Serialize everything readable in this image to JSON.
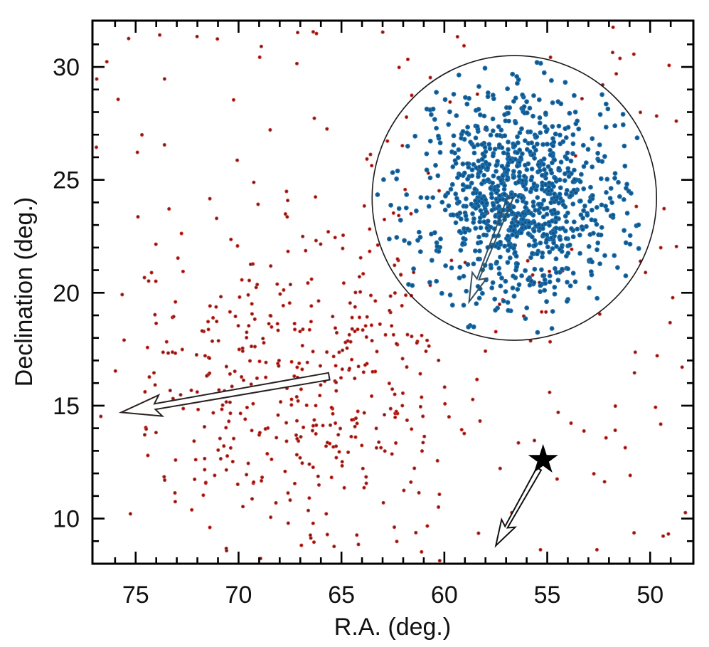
{
  "figure": {
    "background": "#ffffff"
  },
  "chart_data": {
    "type": "scatter",
    "title": "",
    "xlabel": "R.A. (deg.)",
    "ylabel": "Declination (deg.)",
    "x_axis": {
      "label": "R.A. (deg.)",
      "range": [
        77.1,
        47.9
      ],
      "reversed": true,
      "major_ticks": [
        75,
        70,
        65,
        60,
        55,
        50
      ],
      "minor_tick_step": 1
    },
    "y_axis": {
      "label": "Declination (deg.)",
      "range": [
        8.0,
        32.05
      ],
      "major_ticks": [
        10,
        15,
        20,
        25,
        30
      ],
      "minor_tick_step": 1
    },
    "grid": false,
    "legend": "none",
    "series": [
      {
        "name": "field-moving-group-stars",
        "marker": "dot",
        "marker_radius_px": 2.6,
        "color": "#cf302c",
        "core_color": "#330d0b",
        "components": [
          {
            "type": "gaussian",
            "count": 360,
            "center": {
              "ra": 66.9,
              "dec": 15.8
            },
            "sigma": {
              "ra": 4.0,
              "dec": 3.85
            }
          },
          {
            "type": "uniform",
            "count": 200
          }
        ]
      },
      {
        "name": "cluster-member-stars",
        "marker": "dot",
        "marker_radius_px": 3.4,
        "color": "#1e6fad",
        "core_color": "#0f3a63",
        "clip_to_circle": true,
        "components": [
          {
            "type": "gaussian",
            "count": 520,
            "center": {
              "ra": 56.5,
              "dec": 24.1
            },
            "sigma": {
              "ra": 1.9,
              "dec": 1.73
            }
          },
          {
            "type": "gaussian",
            "count": 470,
            "center": {
              "ra": 56.5,
              "dec": 24.1
            },
            "sigma": {
              "ra": 3.6,
              "dec": 3.3
            }
          }
        ]
      }
    ],
    "annotations": {
      "selection_circle": {
        "center": {
          "ra": 56.6,
          "dec": 24.2
        },
        "radius_px": 200,
        "color": "#1a1a1a"
      },
      "arrows": [
        {
          "name": "moving-group-arrow",
          "from": {
            "ra": 65.6,
            "dec": 16.3
          },
          "to": {
            "ra": 75.7,
            "dec": 14.7
          },
          "style": "open-outline",
          "color": "#2a2020",
          "fill": "#ffffff"
        },
        {
          "name": "cluster-arrow",
          "from": {
            "ra": 56.8,
            "dec": 24.2
          },
          "to": {
            "ra": 58.8,
            "dec": 19.6
          },
          "style": "open-outline",
          "color": "#33505f",
          "fill": "none"
        },
        {
          "name": "star-arrow",
          "from": {
            "ra": 55.4,
            "dec": 12.2
          },
          "to": {
            "ra": 57.5,
            "dec": 8.8
          },
          "style": "open-outline",
          "color": "#111111",
          "fill": "#ffffff"
        }
      ],
      "star_symbol": {
        "ra": 55.2,
        "dec": 12.6,
        "color": "#000000"
      }
    }
  }
}
